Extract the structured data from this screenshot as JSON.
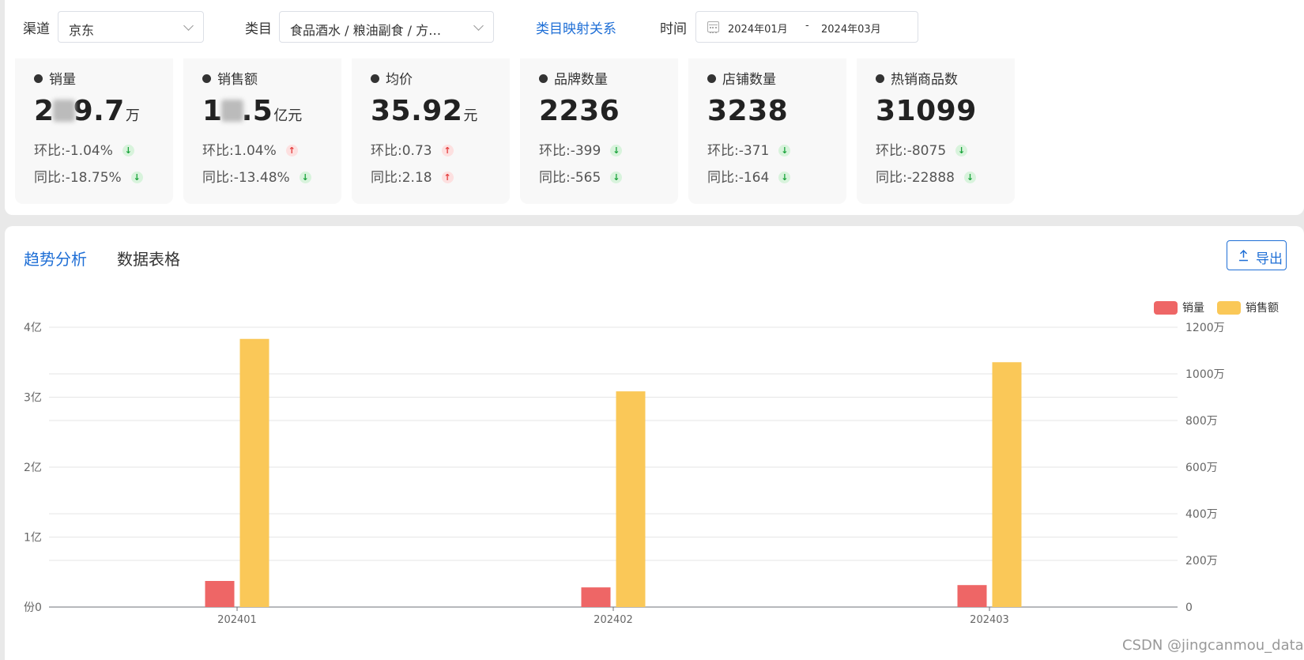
{
  "filters": {
    "channel_label": "渠道",
    "channel_value": "京东",
    "category_label": "类目",
    "category_value": "食品酒水 / 粮油副食 / 方…",
    "mapping_link": "类目映射关系",
    "time_label": "时间",
    "date_start": "2024年01月",
    "date_sep": "-",
    "date_end": "2024年03月"
  },
  "metrics": [
    {
      "title": "销量",
      "value_a": "2",
      "value_b": "9.7",
      "unit": "万",
      "mom_label": "环比:",
      "mom": "-1.04%",
      "mom_dir": "down",
      "yoy_label": "同比:",
      "yoy": "-18.75%",
      "yoy_dir": "down"
    },
    {
      "title": "销售额",
      "value_a": "1",
      "value_b": ".5",
      "unit": "亿元",
      "mom_label": "环比:",
      "mom": "1.04%",
      "mom_dir": "up",
      "yoy_label": "同比:",
      "yoy": "-13.48%",
      "yoy_dir": "down"
    },
    {
      "title": "均价",
      "value": "35.92",
      "unit": "元",
      "mom_label": "环比:",
      "mom": "0.73",
      "mom_dir": "up",
      "yoy_label": "同比:",
      "yoy": "2.18",
      "yoy_dir": "up"
    },
    {
      "title": "品牌数量",
      "value": "2236",
      "unit": "",
      "mom_label": "环比:",
      "mom": "-399",
      "mom_dir": "down",
      "yoy_label": "同比:",
      "yoy": "-565",
      "yoy_dir": "down"
    },
    {
      "title": "店铺数量",
      "value": "3238",
      "unit": "",
      "mom_label": "环比:",
      "mom": "-371",
      "mom_dir": "down",
      "yoy_label": "同比:",
      "yoy": "-164",
      "yoy_dir": "down"
    },
    {
      "title": "热销商品数",
      "value": "31099",
      "unit": "",
      "mom_label": "环比:",
      "mom": "-8075",
      "mom_dir": "down",
      "yoy_label": "同比:",
      "yoy": "-22888",
      "yoy_dir": "down"
    }
  ],
  "tabs": [
    {
      "label": "趋势分析",
      "active": true
    },
    {
      "label": "数据表格",
      "active": false
    }
  ],
  "export_label": "导出",
  "icons": {
    "dropdown": "chevron-down-icon",
    "calendar": "calendar-icon",
    "trend_up": "arrow-up-icon",
    "trend_down": "arrow-down-icon",
    "export": "upload-icon"
  },
  "colors": {
    "accent": "#1f6fd6",
    "sales_volume": "#ee6666",
    "sales_amount": "#fac858",
    "down": "#1aa33b",
    "up": "#e33b3b"
  },
  "chart_data": {
    "type": "bar",
    "categories": [
      "202401",
      "202402",
      "202403"
    ],
    "series": [
      {
        "name": "销量",
        "axis": "left",
        "values": [
          37300000,
          28100000,
          31400000
        ]
      },
      {
        "name": "销售额",
        "axis": "right",
        "values": [
          11500000,
          9250000,
          10500000
        ]
      }
    ],
    "y_left": {
      "min": 0,
      "max": 400000000,
      "ticks": [
        0,
        100000000,
        200000000,
        300000000,
        400000000
      ],
      "tick_labels": [
        "份0",
        "1亿",
        "2亿",
        "3亿",
        "4亿"
      ]
    },
    "y_right": {
      "min": 0,
      "max": 12000000,
      "ticks": [
        0,
        2000000,
        4000000,
        6000000,
        8000000,
        10000000,
        12000000
      ],
      "tick_labels": [
        "0",
        "200万",
        "400万",
        "600万",
        "800万",
        "1000万",
        "1200万"
      ]
    },
    "legend": "top-right",
    "grid": true
  },
  "watermark": "CSDN @jingcanmou_data"
}
